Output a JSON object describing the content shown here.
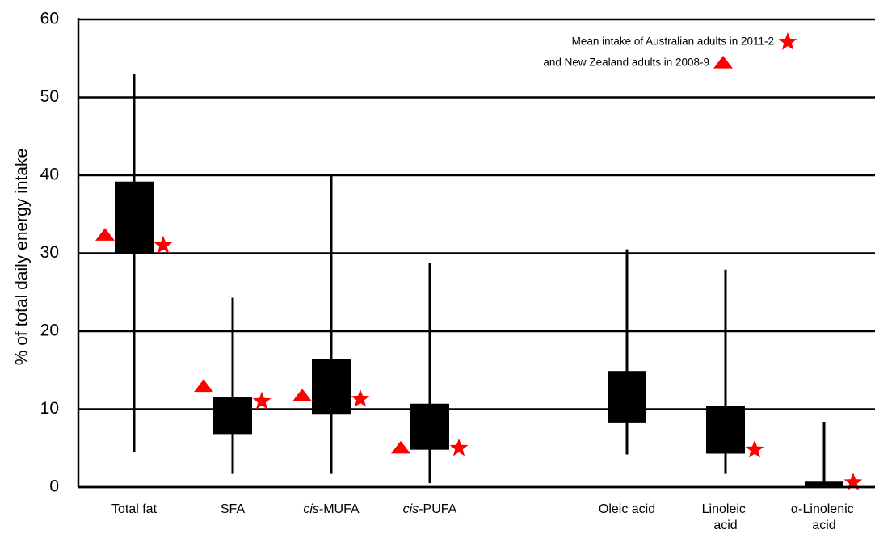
{
  "chart_data": {
    "type": "box",
    "y_label": "% of total daily energy intake",
    "categories": [
      "Total fat",
      "SFA",
      "cis-MUFA",
      "cis-PUFA",
      null,
      "Oleic acid",
      "Linoleic acid",
      "α-Linolenic acid"
    ],
    "whisker_low": [
      4.5,
      1.7,
      1.7,
      0.5,
      null,
      4.2,
      1.7,
      0
    ],
    "box_low": [
      30,
      6.8,
      9.3,
      4.8,
      null,
      8.2,
      4.3,
      0
    ],
    "box_high": [
      39.2,
      11.5,
      16.4,
      10.7,
      null,
      14.9,
      10.4,
      0.7
    ],
    "whisker_high": [
      53,
      24.3,
      40,
      28.8,
      null,
      30.5,
      27.9,
      8.3
    ],
    "box_color": "#000000",
    "series": [
      {
        "name": "Mean intake of Australian adults in   2011-2",
        "marker": "star",
        "color": "#ff0000",
        "values": [
          31,
          11,
          11.3,
          5,
          null,
          null,
          4.8,
          0.6
        ]
      },
      {
        "name": "and New Zealand adults in 2008-9",
        "marker": "triangle",
        "color": "#ff0000",
        "values": [
          32.3,
          12.9,
          11.7,
          5,
          null,
          null,
          null,
          null
        ]
      }
    ],
    "ylim": [
      0,
      60
    ],
    "yticks": [
      0,
      10,
      20,
      30,
      40,
      50,
      60
    ],
    "grid": true
  }
}
